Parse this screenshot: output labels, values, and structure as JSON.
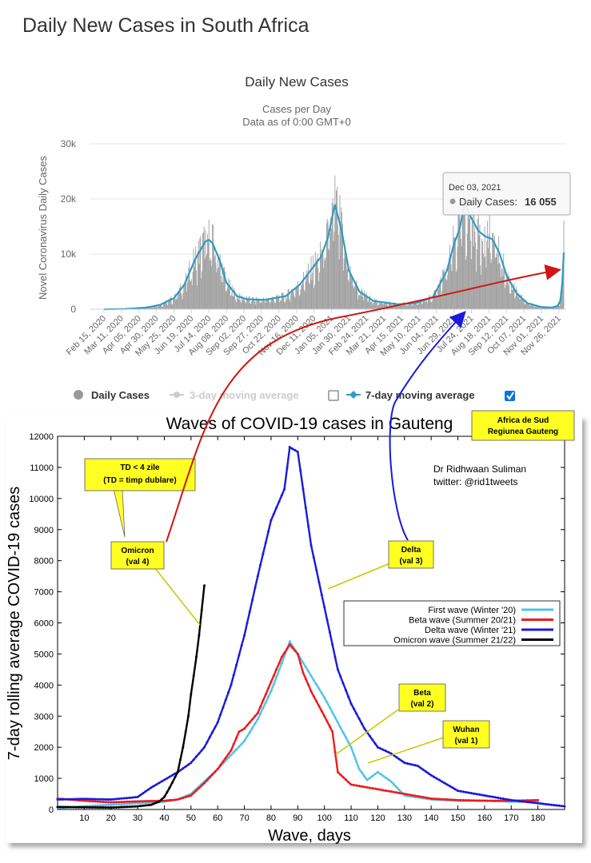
{
  "page": {
    "title": "Daily New Cases in South Africa"
  },
  "chart_data": [
    {
      "type": "bar",
      "title": "Daily New Cases",
      "subtitle_line1": "Cases per Day",
      "subtitle_line2": "Data as of 0:00 GMT+0",
      "ylabel": "Novel Coronavirus Daily Cases",
      "ylim": [
        0,
        30000
      ],
      "y_ticks": [
        0,
        10000,
        20000,
        30000
      ],
      "y_tick_labels": [
        "0",
        "10k",
        "20k",
        "30k"
      ],
      "x_tick_labels": [
        "Feb 15, 2020",
        "Mar 11, 2020",
        "Apr 05, 2020",
        "Apr 30, 2020",
        "May 25, 2020",
        "Jun 19, 2020",
        "Jul 14, 2020",
        "Aug 08, 2020",
        "Sep 02, 2020",
        "Sep 27, 2020",
        "Oct 22, 2020",
        "Nov 16, 2020",
        "Dec 11, 2020",
        "Jan 05, 2021",
        "Jan 30, 2021",
        "Feb 24, 2021",
        "Mar 21, 2021",
        "Apr 15, 2021",
        "May 10, 2021",
        "Jun 04, 2021",
        "Jun 29, 2021",
        "Jul 24, 2021",
        "Aug 18, 2021",
        "Sep 12, 2021",
        "Oct 07, 2021",
        "Nov 01, 2021",
        "Nov 26, 2021"
      ],
      "x_tick_days": [
        0,
        25,
        50,
        75,
        100,
        125,
        150,
        175,
        200,
        225,
        250,
        275,
        300,
        325,
        350,
        375,
        400,
        425,
        450,
        475,
        500,
        525,
        550,
        575,
        600,
        625,
        650
      ],
      "x_last_day": 657,
      "moving_avg_7day": {
        "days": [
          0,
          30,
          60,
          80,
          100,
          115,
          130,
          145,
          150,
          155,
          165,
          175,
          190,
          205,
          230,
          260,
          280,
          295,
          310,
          320,
          325,
          330,
          340,
          350,
          365,
          385,
          420,
          445,
          470,
          490,
          500,
          508,
          515,
          525,
          535,
          545,
          555,
          565,
          575,
          590,
          605,
          625,
          640,
          648,
          652,
          655,
          657
        ],
        "values": [
          0,
          50,
          300,
          800,
          2000,
          4500,
          9000,
          12300,
          12600,
          12000,
          9000,
          4800,
          2400,
          1800,
          1700,
          2400,
          4500,
          7000,
          9500,
          13000,
          16000,
          19000,
          14000,
          7000,
          3200,
          1500,
          900,
          1100,
          2200,
          7000,
          11800,
          14500,
          19200,
          16500,
          14200,
          13200,
          12700,
          10200,
          6200,
          2800,
          1100,
          400,
          300,
          600,
          1500,
          5000,
          10300
        ]
      },
      "legend": [
        {
          "label": "Daily Cases",
          "checked": null
        },
        {
          "label": "3-day moving average",
          "checked": false
        },
        {
          "label": "7-day moving average",
          "checked": true
        }
      ],
      "tooltip": {
        "date": "Dec 03, 2021",
        "label": "Daily Cases:",
        "value": "16 055"
      },
      "colors": {
        "bars": "#a0a0a0",
        "avg7": "#2f9bc1",
        "avg3": "#c8c8c8",
        "grid": "#e6e6e6"
      }
    },
    {
      "type": "line",
      "title": "Waves of COVID-19 cases in Gauteng",
      "xlabel": "Wave, days",
      "ylabel": "7-day rolling average COVID-19 cases",
      "xlim": [
        0,
        190
      ],
      "ylim": [
        0,
        12000
      ],
      "x_ticks": [
        10,
        20,
        30,
        40,
        50,
        60,
        70,
        80,
        90,
        100,
        110,
        120,
        130,
        140,
        150,
        160,
        170,
        180
      ],
      "y_ticks": [
        0,
        1000,
        2000,
        3000,
        4000,
        5000,
        6000,
        7000,
        8000,
        9000,
        10000,
        11000,
        12000
      ],
      "series": [
        {
          "name": "First wave (Winter '20)",
          "color": "#55c2ea",
          "x": [
            0,
            10,
            20,
            30,
            40,
            45,
            50,
            55,
            60,
            65,
            70,
            75,
            80,
            84,
            87,
            90,
            95,
            100,
            105,
            110,
            113,
            116,
            120,
            125,
            130,
            140,
            150,
            160,
            170,
            180
          ],
          "y": [
            50,
            100,
            150,
            200,
            250,
            320,
            500,
            900,
            1300,
            1750,
            2200,
            2900,
            3800,
            4700,
            5400,
            5000,
            4300,
            3600,
            2800,
            2000,
            1300,
            950,
            1200,
            900,
            450,
            320,
            280,
            280,
            250,
            250
          ]
        },
        {
          "name": "Beta wave (Summer 20/21)",
          "color": "#ee1c1c",
          "x": [
            0,
            10,
            20,
            30,
            40,
            45,
            50,
            55,
            60,
            65,
            68,
            70,
            75,
            78,
            80,
            84,
            87,
            90,
            92,
            95,
            100,
            103,
            105,
            110,
            120,
            130,
            140,
            150,
            160,
            170,
            180
          ],
          "y": [
            350,
            280,
            230,
            260,
            280,
            320,
            450,
            850,
            1300,
            1900,
            2500,
            2600,
            3100,
            3700,
            4100,
            4900,
            5300,
            5000,
            4400,
            3800,
            3000,
            2500,
            1200,
            800,
            650,
            500,
            350,
            300,
            280,
            280,
            300
          ]
        },
        {
          "name": "Delta wave (Winter '21)",
          "color": "#1a1adc",
          "x": [
            0,
            10,
            20,
            30,
            35,
            40,
            45,
            50,
            55,
            60,
            65,
            70,
            75,
            80,
            85,
            87,
            90,
            95,
            100,
            105,
            110,
            115,
            120,
            125,
            130,
            135,
            140,
            150,
            160,
            170,
            180,
            190
          ],
          "y": [
            320,
            340,
            320,
            400,
            700,
            950,
            1200,
            1500,
            2000,
            2800,
            4000,
            5600,
            7500,
            9300,
            10300,
            11650,
            11500,
            8500,
            6500,
            4500,
            3400,
            2600,
            2000,
            1800,
            1500,
            1400,
            1100,
            600,
            450,
            300,
            200,
            100
          ]
        },
        {
          "name": "Omicron wave (Summer 21/22)",
          "color": "#000000",
          "x": [
            0,
            10,
            20,
            30,
            35,
            38,
            40,
            42,
            45,
            47,
            49,
            50,
            52,
            53,
            54,
            55
          ],
          "y": [
            80,
            70,
            60,
            100,
            150,
            250,
            400,
            700,
            1200,
            2000,
            3000,
            3700,
            4900,
            5600,
            6400,
            7200
          ]
        }
      ],
      "credit_line1": "Dr Ridhwaan Suliman",
      "credit_line2": "twitter: @rid1tweets",
      "callouts": [
        {
          "line1": "Africa de Sud",
          "line2": "Regiunea Gauteng"
        },
        {
          "line1": "TD < 4 zile",
          "line2": "(TD = timp dublare)"
        },
        {
          "line1": "Omicron",
          "line2": "(val 4)"
        },
        {
          "line1": "Delta",
          "line2": "(val 3)"
        },
        {
          "line1": "Beta",
          "line2": "(val 2)"
        },
        {
          "line1": "Wuhan",
          "line2": "(val 1)"
        }
      ]
    }
  ]
}
